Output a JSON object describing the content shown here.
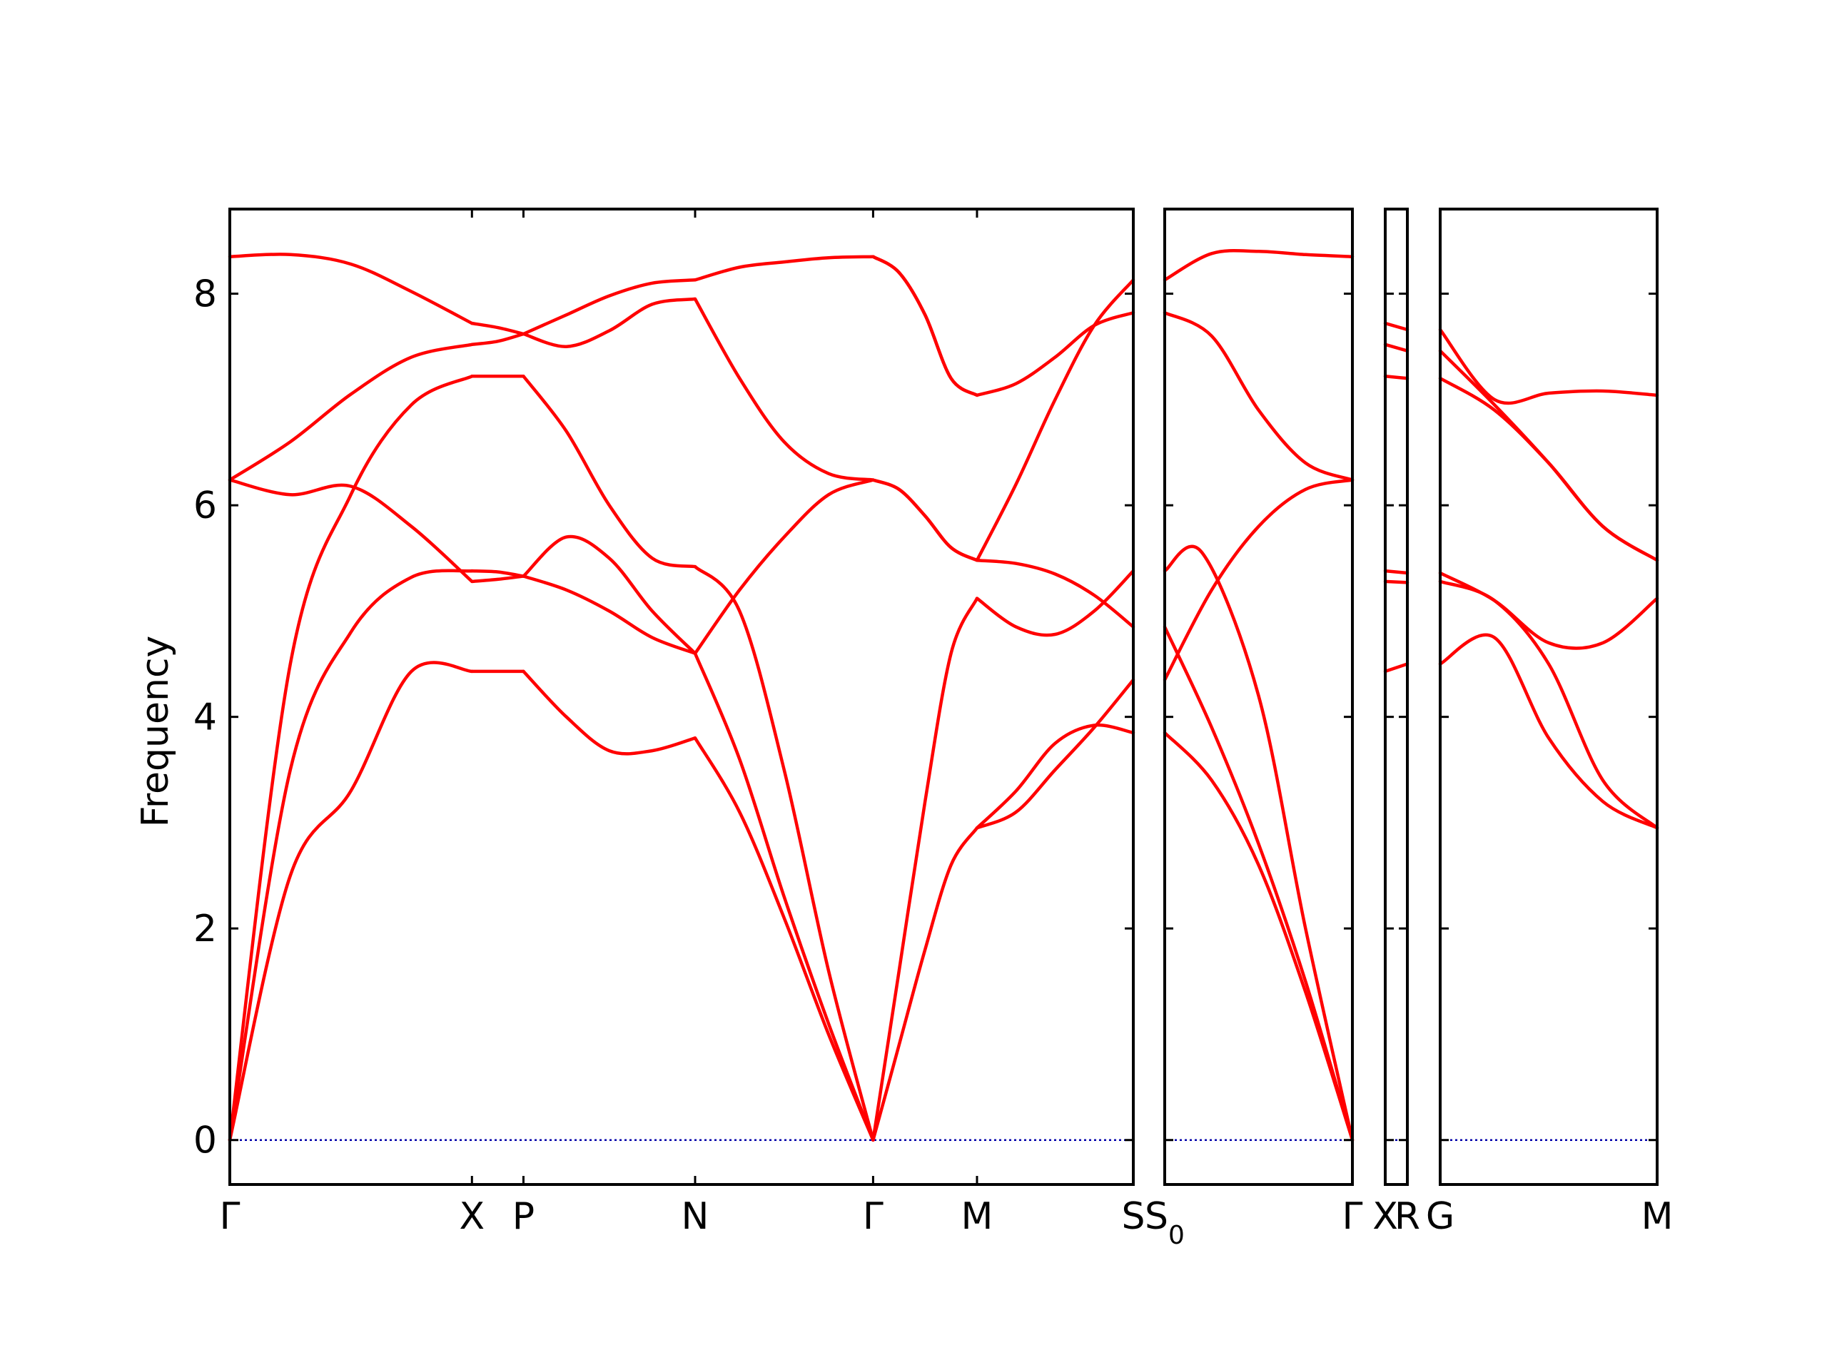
{
  "chart_data": {
    "type": "line",
    "ylabel": "Frequency",
    "ylim": [
      -0.42,
      8.8
    ],
    "yticks": [
      "0",
      "2",
      "4",
      "6",
      "8"
    ],
    "line_color": "#ff0000",
    "zero_line_color": "#0000aa",
    "grid": false,
    "segments": [
      {
        "from": "Γ",
        "to": "X",
        "bands": [
          {
            "x": [
              0,
              0.25,
              0.5,
              0.75,
              1
            ],
            "y": [
              0,
              2.5,
              3.3,
              4.43,
              4.43
            ]
          },
          {
            "x": [
              0,
              0.25,
              0.5,
              0.75,
              1
            ],
            "y": [
              0,
              3.5,
              4.8,
              5.32,
              5.38
            ]
          },
          {
            "x": [
              0,
              0.25,
              0.5,
              0.75,
              1
            ],
            "y": [
              0,
              4.5,
              6.1,
              6.95,
              7.22
            ]
          },
          {
            "x": [
              0,
              0.25,
              0.5,
              0.75,
              1
            ],
            "y": [
              6.24,
              6.1,
              6.18,
              5.8,
              5.28
            ]
          },
          {
            "x": [
              0,
              0.25,
              0.5,
              0.75,
              1
            ],
            "y": [
              6.24,
              6.6,
              7.05,
              7.4,
              7.52
            ]
          },
          {
            "x": [
              0,
              0.25,
              0.5,
              0.75,
              1
            ],
            "y": [
              8.35,
              8.37,
              8.28,
              8.02,
              7.72
            ]
          }
        ]
      },
      {
        "from": "X",
        "to": "P",
        "bands": [
          {
            "x": [
              0,
              0.5,
              1
            ],
            "y": [
              4.43,
              4.43,
              4.43
            ]
          },
          {
            "x": [
              0,
              0.5,
              1
            ],
            "y": [
              5.38,
              5.37,
              5.33
            ]
          },
          {
            "x": [
              0,
              0.5,
              1
            ],
            "y": [
              7.22,
              7.22,
              7.22
            ]
          },
          {
            "x": [
              0,
              0.5,
              1
            ],
            "y": [
              5.28,
              5.3,
              5.33
            ]
          },
          {
            "x": [
              0,
              0.5,
              1
            ],
            "y": [
              7.52,
              7.55,
              7.62
            ]
          },
          {
            "x": [
              0,
              0.5,
              1
            ],
            "y": [
              7.72,
              7.68,
              7.62
            ]
          }
        ]
      },
      {
        "from": "P",
        "to": "N",
        "bands": [
          {
            "x": [
              0,
              0.25,
              0.5,
              0.75,
              1
            ],
            "y": [
              4.43,
              4.0,
              3.68,
              3.68,
              3.8
            ]
          },
          {
            "x": [
              0,
              0.25,
              0.5,
              0.75,
              1
            ],
            "y": [
              5.33,
              5.2,
              5.0,
              4.75,
              4.6
            ]
          },
          {
            "x": [
              0,
              0.25,
              0.5,
              0.75,
              1
            ],
            "y": [
              7.22,
              6.7,
              6.0,
              5.5,
              5.42
            ]
          },
          {
            "x": [
              0,
              0.25,
              0.5,
              0.75,
              1
            ],
            "y": [
              5.33,
              5.7,
              5.5,
              5.0,
              4.6
            ]
          },
          {
            "x": [
              0,
              0.25,
              0.5,
              0.75,
              1
            ],
            "y": [
              7.62,
              7.5,
              7.65,
              7.9,
              7.95
            ]
          },
          {
            "x": [
              0,
              0.25,
              0.5,
              0.75,
              1
            ],
            "y": [
              7.62,
              7.8,
              7.98,
              8.1,
              8.13
            ]
          }
        ]
      },
      {
        "from": "N",
        "to": "Γ",
        "bands": [
          {
            "x": [
              0,
              0.25,
              0.5,
              0.75,
              1
            ],
            "y": [
              3.8,
              3.1,
              2.1,
              1.0,
              0
            ]
          },
          {
            "x": [
              0,
              0.25,
              0.5,
              0.75,
              1
            ],
            "y": [
              4.6,
              3.6,
              2.3,
              1.1,
              0
            ]
          },
          {
            "x": [
              0,
              0.25,
              0.5,
              0.75,
              1
            ],
            "y": [
              5.42,
              5.0,
              3.5,
              1.6,
              0
            ]
          },
          {
            "x": [
              0,
              0.25,
              0.5,
              0.75,
              1
            ],
            "y": [
              4.6,
              5.2,
              5.7,
              6.1,
              6.24
            ]
          },
          {
            "x": [
              0,
              0.25,
              0.5,
              0.75,
              1
            ],
            "y": [
              7.95,
              7.2,
              6.6,
              6.3,
              6.24
            ]
          },
          {
            "x": [
              0,
              0.25,
              0.5,
              0.75,
              1
            ],
            "y": [
              8.13,
              8.25,
              8.3,
              8.34,
              8.35
            ]
          }
        ]
      },
      {
        "from": "Γ",
        "to": "M",
        "bands": [
          {
            "x": [
              0,
              0.25,
              0.5,
              0.75,
              1
            ],
            "y": [
              0,
              0.9,
              1.8,
              2.6,
              2.95
            ]
          },
          {
            "x": [
              0,
              0.25,
              0.5,
              0.75,
              1
            ],
            "y": [
              0,
              1.6,
              3.2,
              4.6,
              5.12
            ]
          },
          {
            "x": [
              0,
              0.25,
              0.5,
              0.75,
              1
            ],
            "y": [
              6.24,
              6.15,
              5.9,
              5.6,
              5.48
            ]
          },
          {
            "x": [
              0,
              0.25,
              0.5,
              0.75,
              1
            ],
            "y": [
              6.24,
              6.15,
              5.9,
              5.6,
              5.48
            ]
          },
          {
            "x": [
              0,
              0.25,
              0.5,
              0.75,
              1
            ],
            "y": [
              8.35,
              8.2,
              7.8,
              7.2,
              7.04
            ]
          },
          {
            "x": [
              0,
              0.25,
              0.5,
              0.75,
              1
            ],
            "y": [
              8.35,
              8.2,
              7.8,
              7.2,
              7.04
            ]
          }
        ]
      },
      {
        "from": "M",
        "to": "S",
        "bands": [
          {
            "x": [
              0,
              0.25,
              0.5,
              0.75,
              1
            ],
            "y": [
              2.95,
              3.3,
              3.75,
              3.92,
              3.85
            ]
          },
          {
            "x": [
              0,
              0.25,
              0.5,
              0.75,
              1
            ],
            "y": [
              2.95,
              3.1,
              3.5,
              3.9,
              4.35
            ]
          },
          {
            "x": [
              0,
              0.25,
              0.5,
              0.75,
              1
            ],
            "y": [
              5.12,
              4.85,
              4.78,
              5.0,
              5.38
            ]
          },
          {
            "x": [
              0,
              0.25,
              0.5,
              0.75,
              1
            ],
            "y": [
              5.48,
              5.45,
              5.35,
              5.15,
              4.85
            ]
          },
          {
            "x": [
              0,
              0.25,
              0.5,
              0.75,
              1
            ],
            "y": [
              5.48,
              6.2,
              7.0,
              7.7,
              8.13
            ]
          },
          {
            "x": [
              0,
              0.25,
              0.5,
              0.75,
              1
            ],
            "y": [
              7.04,
              7.15,
              7.4,
              7.7,
              7.82
            ]
          }
        ]
      },
      {
        "from": "S₀",
        "to": "Γ",
        "bands": [
          {
            "x": [
              0,
              0.25,
              0.5,
              0.75,
              1
            ],
            "y": [
              3.85,
              3.4,
              2.6,
              1.4,
              0
            ]
          },
          {
            "x": [
              0,
              0.25,
              0.5,
              0.75,
              1
            ],
            "y": [
              4.85,
              3.9,
              2.8,
              1.5,
              0
            ]
          },
          {
            "x": [
              0,
              0.2,
              0.5,
              0.75,
              1
            ],
            "y": [
              5.38,
              5.55,
              4.2,
              2.0,
              0
            ]
          },
          {
            "x": [
              0,
              0.25,
              0.5,
              0.75,
              1
            ],
            "y": [
              4.35,
              5.2,
              5.8,
              6.15,
              6.24
            ]
          },
          {
            "x": [
              0,
              0.25,
              0.5,
              0.75,
              1
            ],
            "y": [
              7.82,
              7.6,
              6.9,
              6.4,
              6.24
            ]
          },
          {
            "x": [
              0,
              0.25,
              0.5,
              0.75,
              1
            ],
            "y": [
              8.13,
              8.38,
              8.4,
              8.37,
              8.35
            ]
          }
        ]
      },
      {
        "from": "X",
        "to": "R",
        "bands": [
          {
            "x": [
              0,
              1
            ],
            "y": [
              4.43,
              4.5
            ]
          },
          {
            "x": [
              0,
              1
            ],
            "y": [
              5.28,
              5.27
            ]
          },
          {
            "x": [
              0,
              1
            ],
            "y": [
              5.38,
              5.36
            ]
          },
          {
            "x": [
              0,
              1
            ],
            "y": [
              7.22,
              7.2
            ]
          },
          {
            "x": [
              0,
              1
            ],
            "y": [
              7.52,
              7.46
            ]
          },
          {
            "x": [
              0,
              1
            ],
            "y": [
              7.72,
              7.66
            ]
          }
        ]
      },
      {
        "from": "G",
        "to": "M",
        "bands": [
          {
            "x": [
              0,
              0.25,
              0.5,
              0.75,
              1
            ],
            "y": [
              4.5,
              4.75,
              3.8,
              3.2,
              2.95
            ]
          },
          {
            "x": [
              0,
              0.25,
              0.5,
              0.75,
              1
            ],
            "y": [
              5.28,
              5.1,
              4.5,
              3.4,
              2.95
            ]
          },
          {
            "x": [
              0,
              0.25,
              0.5,
              0.75,
              1
            ],
            "y": [
              5.36,
              5.1,
              4.7,
              4.7,
              5.12
            ]
          },
          {
            "x": [
              0,
              0.25,
              0.5,
              0.75,
              1
            ],
            "y": [
              7.2,
              6.9,
              6.4,
              5.8,
              5.48
            ]
          },
          {
            "x": [
              0,
              0.25,
              0.5,
              0.75,
              1
            ],
            "y": [
              7.46,
              6.95,
              6.4,
              5.8,
              5.48
            ]
          },
          {
            "x": [
              0,
              0.25,
              0.5,
              0.75,
              1
            ],
            "y": [
              7.66,
              7.0,
              7.06,
              7.08,
              7.04
            ]
          }
        ]
      }
    ],
    "panels": [
      {
        "name": "main",
        "xticks": [
          {
            "label": "Γ",
            "pos": 0
          },
          {
            "label": "X",
            "pos": 0.268
          },
          {
            "label": "P",
            "pos": 0.325
          },
          {
            "label": "N",
            "pos": 0.515
          },
          {
            "label": "Γ",
            "pos": 0.712
          },
          {
            "label": "M",
            "pos": 0.827
          },
          {
            "label": "S",
            "pos": 1
          }
        ],
        "segments": [
          [
            0,
            0,
            0.268
          ],
          [
            1,
            0.268,
            0.325
          ],
          [
            2,
            0.325,
            0.515
          ],
          [
            3,
            0.515,
            0.712
          ],
          [
            4,
            0.712,
            0.827
          ],
          [
            5,
            0.827,
            1
          ]
        ]
      },
      {
        "name": "s0-gamma",
        "xticks": [
          {
            "label": "S",
            "sub": "0",
            "pos": 0
          },
          {
            "label": "Γ",
            "pos": 1
          }
        ],
        "segments": [
          [
            6,
            0,
            1
          ]
        ]
      },
      {
        "name": "x-r",
        "xticks": [
          {
            "label": "X",
            "pos": 0
          },
          {
            "label": "R",
            "pos": 1
          }
        ],
        "segments": [
          [
            7,
            0,
            1
          ]
        ]
      },
      {
        "name": "g-m",
        "xticks": [
          {
            "label": "G",
            "pos": 0
          },
          {
            "label": "M",
            "pos": 1
          }
        ],
        "segments": [
          [
            8,
            0,
            1
          ]
        ]
      }
    ]
  }
}
